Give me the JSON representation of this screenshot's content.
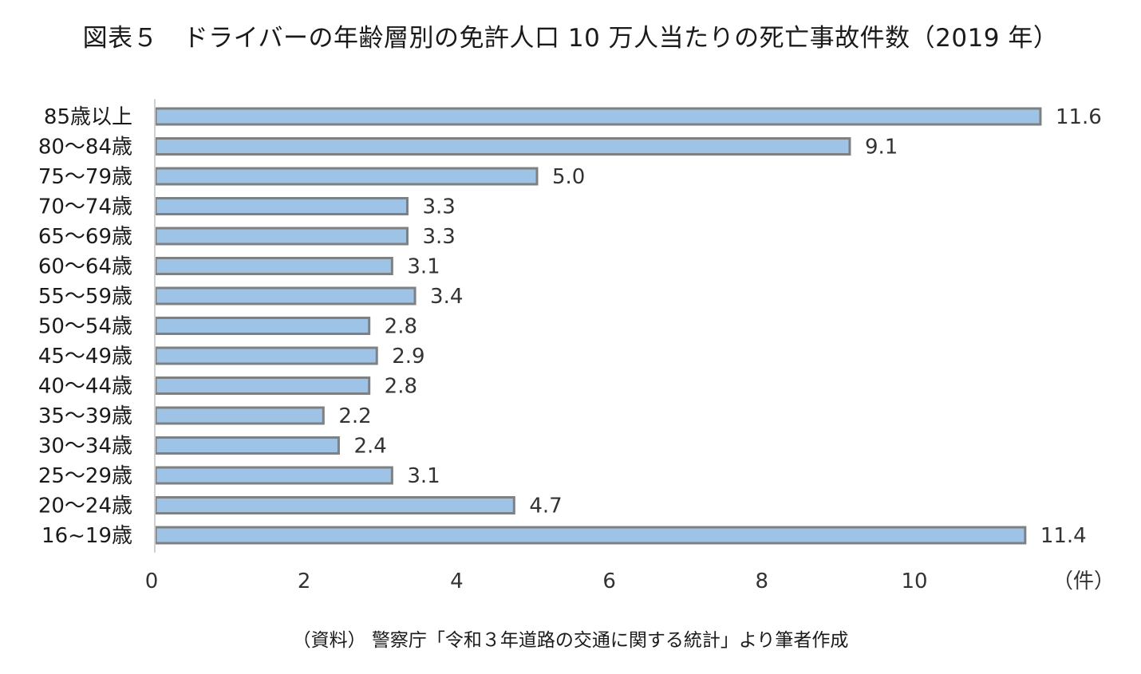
{
  "chart_data": {
    "type": "bar",
    "orientation": "horizontal",
    "title": "図表５　ドライバーの年齢層別の免許人口 10 万人当たりの死亡事故件数（2019 年）",
    "source": "（資料） 警察庁「令和３年道路の交通に関する統計」より筆者作成",
    "unit_label": "（件）",
    "categories": [
      "85歳以上",
      "80〜84歳",
      "75〜79歳",
      "70〜74歳",
      "65〜69歳",
      "60〜64歳",
      "55〜59歳",
      "50〜54歳",
      "45〜49歳",
      "40〜44歳",
      "35〜39歳",
      "30〜34歳",
      "25〜29歳",
      "20〜24歳",
      "16~19歳"
    ],
    "values": [
      11.6,
      9.1,
      5.0,
      3.3,
      3.3,
      3.1,
      3.4,
      2.8,
      2.9,
      2.8,
      2.2,
      2.4,
      3.1,
      4.7,
      11.4
    ],
    "data_labels": [
      "11.6",
      "9.1",
      "5.0",
      "3.3",
      "3.3",
      "3.1",
      "3.4",
      "2.8",
      "2.9",
      "2.8",
      "2.2",
      "2.4",
      "3.1",
      "4.7",
      "11.4"
    ],
    "xticks": [
      "0",
      "2",
      "4",
      "6",
      "8",
      "10"
    ],
    "xlim": [
      0,
      12
    ],
    "grid": false,
    "legend": "none",
    "colors": {
      "bar_fill": "#9DC3E6",
      "bar_stroke": "#808080",
      "axis": "#D0D0D0"
    }
  }
}
